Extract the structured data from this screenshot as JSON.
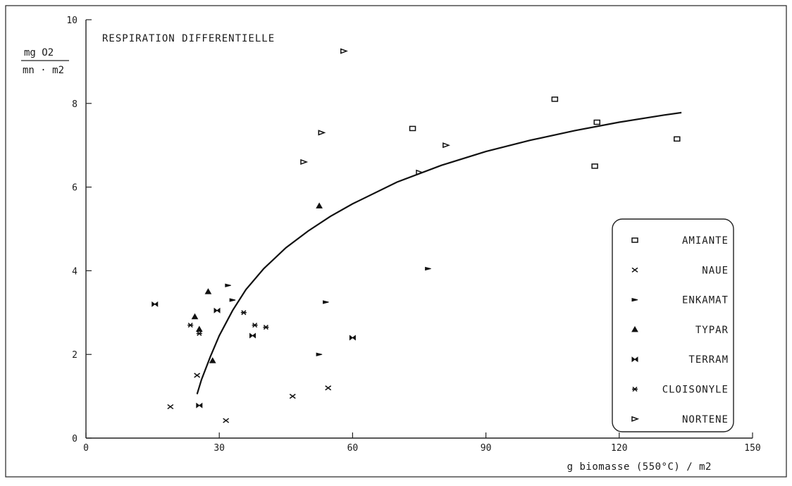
{
  "chart_data": {
    "type": "scatter",
    "title": "RESPIRATION DIFFERENTIELLE",
    "ylabel_numerator": "mg O2",
    "ylabel_denominator": "mn · m2",
    "xlabel": "g biomasse (550°C) / m2",
    "xlim": [
      0,
      150
    ],
    "ylim": [
      0,
      10
    ],
    "x_ticks": [
      "0",
      "30",
      "60",
      "90",
      "120",
      "150"
    ],
    "y_ticks": [
      "0",
      "2",
      "4",
      "6",
      "8",
      "10"
    ],
    "legend_position": "bottom-right",
    "series": [
      {
        "name": "AMIANTE",
        "marker": "square",
        "points": [
          [
            73.5,
            7.4
          ],
          [
            105.5,
            8.1
          ],
          [
            115,
            7.55
          ],
          [
            114.5,
            6.5
          ],
          [
            133,
            7.15
          ]
        ]
      },
      {
        "name": "NAUE",
        "marker": "x",
        "points": [
          [
            19,
            0.75
          ],
          [
            25,
            1.5
          ],
          [
            31.5,
            0.42
          ],
          [
            46.5,
            1.0
          ],
          [
            54.5,
            1.2
          ]
        ]
      },
      {
        "name": "ENKAMAT",
        "marker": "flag",
        "points": [
          [
            32,
            3.65
          ],
          [
            33,
            3.3
          ],
          [
            52.5,
            2.0
          ],
          [
            54,
            3.25
          ],
          [
            77,
            4.05
          ]
        ]
      },
      {
        "name": "TYPAR",
        "marker": "triangle",
        "points": [
          [
            24.5,
            2.9
          ],
          [
            25.5,
            2.6
          ],
          [
            27.5,
            3.5
          ],
          [
            28.5,
            1.85
          ],
          [
            52.5,
            5.55
          ]
        ]
      },
      {
        "name": "TERRAM",
        "marker": "bowtie",
        "points": [
          [
            15.5,
            3.2
          ],
          [
            25.5,
            0.78
          ],
          [
            29.5,
            3.05
          ],
          [
            37.5,
            2.45
          ],
          [
            60,
            2.4
          ]
        ]
      },
      {
        "name": "CLOISONYLE",
        "marker": "star",
        "points": [
          [
            23.5,
            2.7
          ],
          [
            25.5,
            2.5
          ],
          [
            35.5,
            3.0
          ],
          [
            38,
            2.7
          ],
          [
            40.5,
            2.65
          ]
        ]
      },
      {
        "name": "NORTENE",
        "marker": "pennant",
        "points": [
          [
            49,
            6.6
          ],
          [
            53,
            7.3
          ],
          [
            58,
            9.25
          ],
          [
            75,
            6.35
          ],
          [
            81,
            7.0
          ]
        ]
      }
    ],
    "fit_curve": [
      [
        25,
        1.05
      ],
      [
        26,
        1.4
      ],
      [
        28,
        1.95
      ],
      [
        30,
        2.45
      ],
      [
        33,
        3.05
      ],
      [
        36,
        3.55
      ],
      [
        40,
        4.05
      ],
      [
        45,
        4.55
      ],
      [
        50,
        4.95
      ],
      [
        55,
        5.3
      ],
      [
        60,
        5.6
      ],
      [
        70,
        6.12
      ],
      [
        80,
        6.52
      ],
      [
        90,
        6.85
      ],
      [
        100,
        7.12
      ],
      [
        110,
        7.35
      ],
      [
        120,
        7.55
      ],
      [
        130,
        7.72
      ],
      [
        134,
        7.78
      ]
    ]
  }
}
